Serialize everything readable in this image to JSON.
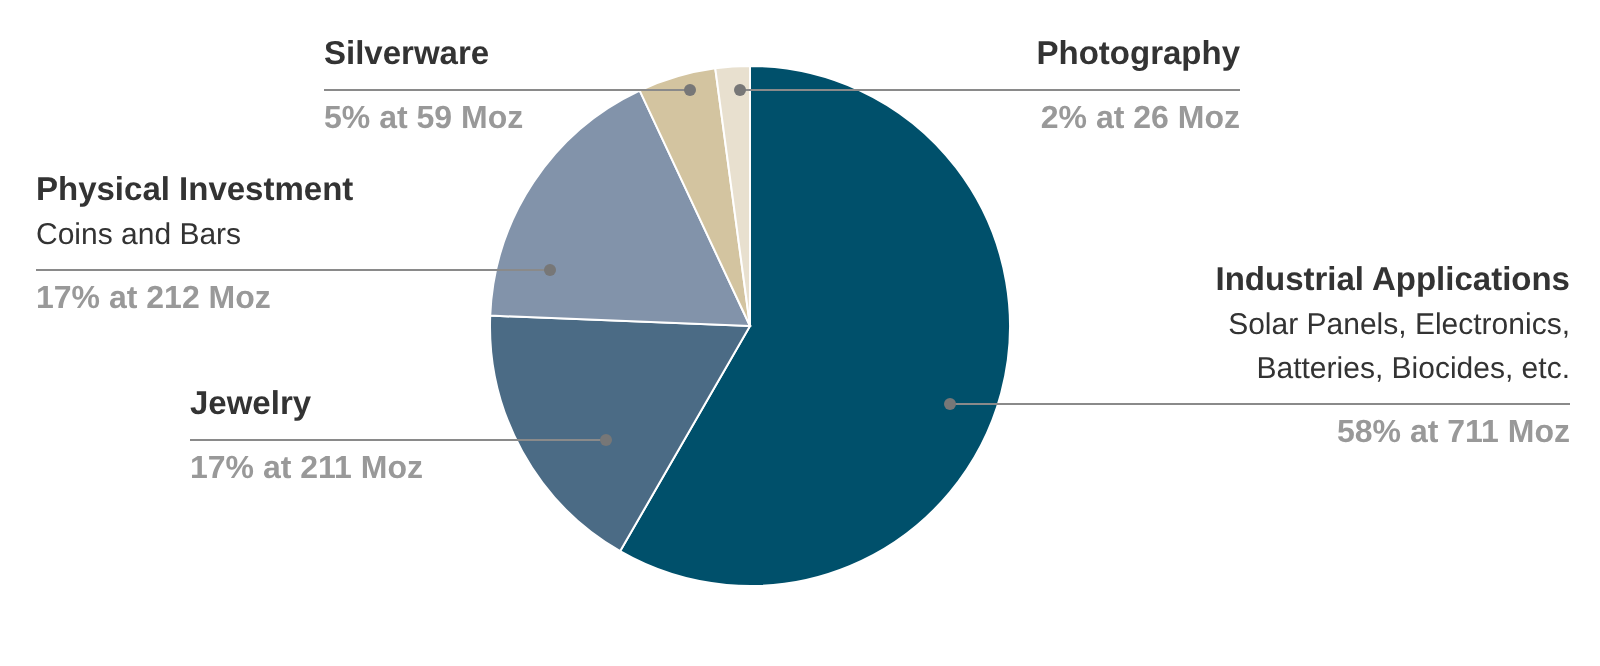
{
  "chart_data": {
    "type": "pie",
    "categories": [
      "Industrial Applications",
      "Jewelry",
      "Physical Investment",
      "Silverware",
      "Photography"
    ],
    "values": [
      711,
      211,
      212,
      59,
      26
    ],
    "colors": [
      "#00506b",
      "#4b6b85",
      "#8293aa",
      "#d3c4a0",
      "#e8e0cf"
    ],
    "value_labels": [
      "58% at 711 Moz",
      "17% at 211 Moz",
      "17% at 212 Moz",
      "5% at 59 Moz",
      "2% at 26 Moz"
    ],
    "annotations": [
      {
        "text": "Solar Panels, Electronics, Batteries, Biocides, etc.",
        "x": "Industrial Applications"
      },
      {
        "text": "Coins and Bars",
        "x": "Physical Investment"
      }
    ]
  }
}
